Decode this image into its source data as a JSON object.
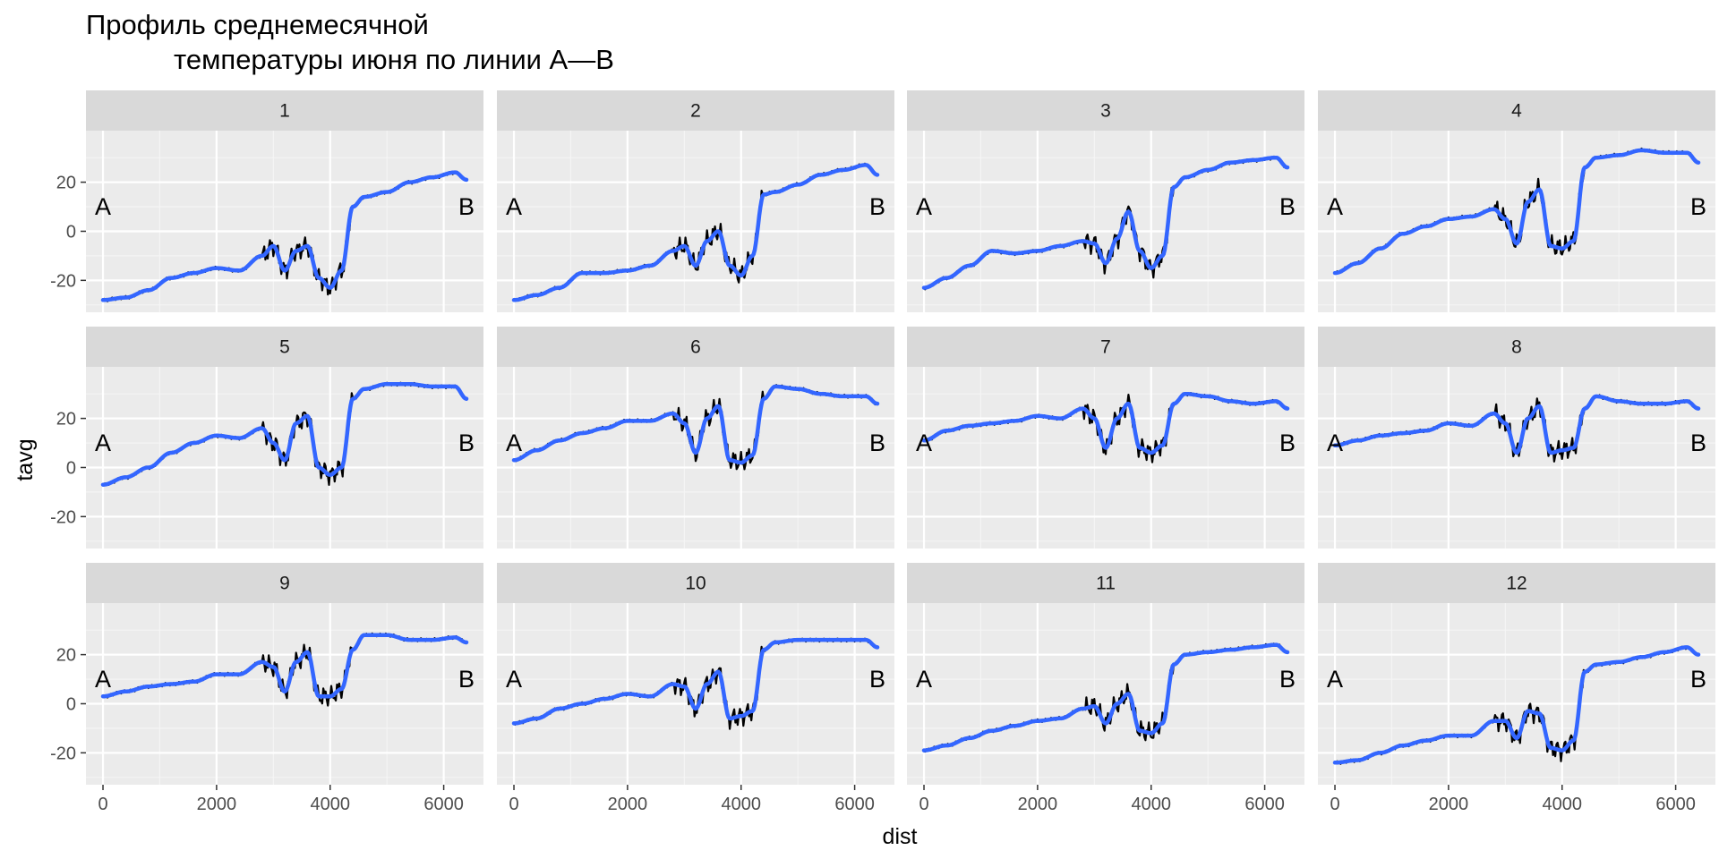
{
  "chart_data": {
    "type": "line",
    "title": "Профиль среднемесячной\n        температуры июня по линии А—В",
    "title_lines": [
      "Профиль среднемесячной",
      "температуры июня по линии А—В"
    ],
    "xlabel": "dist",
    "ylabel": "tavg",
    "xlim": [
      -300,
      6700
    ],
    "ylim": [
      -33,
      41
    ],
    "xticks": [
      0,
      2000,
      4000,
      6000
    ],
    "xtick_labels": [
      "0",
      "2000",
      "4000",
      "6000"
    ],
    "yticks": [
      -20,
      0,
      20
    ],
    "ytick_labels": [
      "-20",
      "0",
      "20"
    ],
    "grid": true,
    "layout": "facet 3 rows x 4 columns",
    "point_labels": {
      "start": "A",
      "end": "B",
      "start_x": 0,
      "end_x": 6400,
      "y": 10
    },
    "colors": {
      "panel_bg": "#ebebeb",
      "strip_bg": "#d9d9d9",
      "grid_major": "#ffffff",
      "grid_minor": "#f5f5f5",
      "raw_line": "#000000",
      "smooth_line": "#3366ff"
    },
    "series_styles": [
      {
        "key": "raw",
        "color": "#000000",
        "width": 2.2
      },
      {
        "key": "smooth",
        "color": "#3366ff",
        "width": 4.5
      }
    ],
    "x": [
      0,
      400,
      800,
      1200,
      1600,
      2000,
      2400,
      2800,
      3000,
      3200,
      3400,
      3600,
      3800,
      4000,
      4200,
      4400,
      4600,
      5000,
      5400,
      5800,
      6200,
      6400
    ],
    "facets": [
      {
        "label": "1",
        "smooth": [
          -28,
          -27,
          -24,
          -19,
          -17,
          -15,
          -16,
          -10,
          -6,
          -16,
          -8,
          -6,
          -19,
          -23,
          -16,
          10,
          14,
          16,
          20,
          22,
          24,
          21
        ]
      },
      {
        "label": "2",
        "smooth": [
          -28,
          -26,
          -23,
          -17,
          -17,
          -16,
          -14,
          -8,
          -6,
          -14,
          -4,
          0,
          -14,
          -18,
          -10,
          15,
          16,
          19,
          23,
          25,
          27,
          23
        ]
      },
      {
        "label": "3",
        "smooth": [
          -23,
          -19,
          -14,
          -8,
          -9,
          -8,
          -6,
          -4,
          -5,
          -13,
          -3,
          8,
          -8,
          -15,
          -10,
          18,
          22,
          25,
          28,
          29,
          30,
          26
        ]
      },
      {
        "label": "4",
        "smooth": [
          -17,
          -13,
          -7,
          -1,
          2,
          5,
          6,
          9,
          5,
          -5,
          12,
          17,
          -6,
          -7,
          -4,
          26,
          30,
          31,
          33,
          32,
          32,
          28
        ]
      },
      {
        "label": "5",
        "smooth": [
          -7,
          -4,
          0,
          6,
          10,
          13,
          12,
          16,
          10,
          3,
          18,
          21,
          0,
          -3,
          0,
          28,
          32,
          34,
          34,
          33,
          33,
          28
        ]
      },
      {
        "label": "6",
        "smooth": [
          3,
          7,
          11,
          14,
          16,
          19,
          19,
          22,
          18,
          6,
          20,
          25,
          3,
          2,
          5,
          28,
          33,
          32,
          30,
          29,
          29,
          26
        ]
      },
      {
        "label": "7",
        "smooth": [
          11,
          15,
          17,
          18,
          19,
          21,
          20,
          24,
          20,
          8,
          20,
          26,
          8,
          6,
          9,
          26,
          30,
          29,
          27,
          26,
          27,
          24
        ]
      },
      {
        "label": "8",
        "smooth": [
          9,
          11,
          13,
          14,
          15,
          18,
          17,
          22,
          18,
          6,
          20,
          25,
          6,
          7,
          8,
          24,
          29,
          27,
          26,
          26,
          27,
          24
        ]
      },
      {
        "label": "9",
        "smooth": [
          3,
          5,
          7,
          8,
          9,
          12,
          12,
          17,
          15,
          5,
          17,
          21,
          3,
          3,
          6,
          22,
          28,
          28,
          26,
          26,
          27,
          25
        ]
      },
      {
        "label": "10",
        "smooth": [
          -8,
          -6,
          -2,
          0,
          2,
          4,
          3,
          8,
          7,
          -2,
          8,
          13,
          -6,
          -5,
          -3,
          22,
          25,
          26,
          26,
          26,
          26,
          23
        ]
      },
      {
        "label": "11",
        "smooth": [
          -19,
          -17,
          -14,
          -11,
          -9,
          -7,
          -6,
          -2,
          -1,
          -8,
          0,
          4,
          -11,
          -12,
          -8,
          16,
          20,
          21,
          22,
          23,
          24,
          21
        ]
      },
      {
        "label": "12",
        "smooth": [
          -24,
          -23,
          -20,
          -17,
          -15,
          -13,
          -13,
          -7,
          -7,
          -14,
          -3,
          -4,
          -18,
          -19,
          -15,
          13,
          16,
          17,
          19,
          21,
          23,
          20
        ]
      }
    ]
  }
}
